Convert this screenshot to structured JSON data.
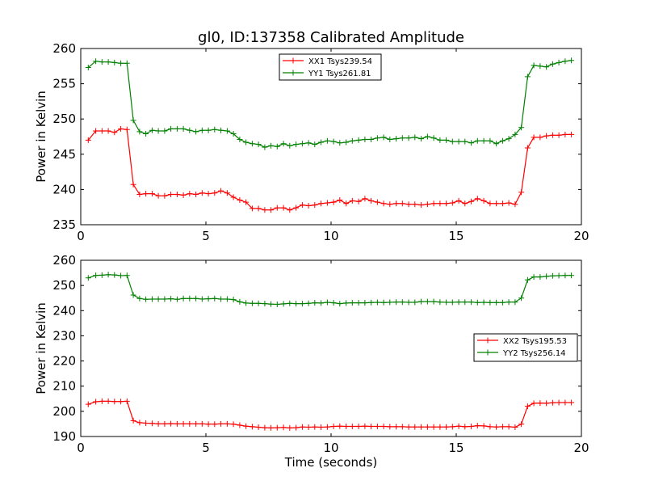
{
  "chart_data": [
    {
      "type": "line",
      "title": "gl0, ID:137358 Calibrated Amplitude",
      "xlabel": "",
      "ylabel": "Power in Kelvin",
      "xlim": [
        0,
        20
      ],
      "ylim": [
        235,
        260
      ],
      "xticks": [
        0,
        5,
        10,
        15,
        20
      ],
      "yticks": [
        235,
        240,
        245,
        250,
        255,
        260
      ],
      "legend_position": "top-center",
      "grid": false,
      "x": [
        0.3,
        0.6,
        0.85,
        1.1,
        1.35,
        1.6,
        1.85,
        2.1,
        2.35,
        2.6,
        2.85,
        3.1,
        3.35,
        3.6,
        3.85,
        4.1,
        4.35,
        4.6,
        4.85,
        5.1,
        5.35,
        5.6,
        5.85,
        6.1,
        6.35,
        6.6,
        6.85,
        7.1,
        7.35,
        7.6,
        7.85,
        8.1,
        8.35,
        8.6,
        8.85,
        9.1,
        9.35,
        9.6,
        9.85,
        10.1,
        10.35,
        10.6,
        10.85,
        11.1,
        11.35,
        11.6,
        11.85,
        12.1,
        12.35,
        12.6,
        12.85,
        13.1,
        13.35,
        13.6,
        13.85,
        14.1,
        14.35,
        14.6,
        14.85,
        15.1,
        15.35,
        15.6,
        15.85,
        16.1,
        16.35,
        16.6,
        16.85,
        17.1,
        17.35,
        17.6,
        17.85,
        18.1,
        18.35,
        18.6,
        18.85,
        19.1,
        19.35,
        19.6
      ],
      "series": [
        {
          "name": "XX1 Tsys239.54",
          "color": "#ff0000",
          "values": [
            247.0,
            248.3,
            248.3,
            248.3,
            248.1,
            248.6,
            248.5,
            240.7,
            239.3,
            239.4,
            239.4,
            239.1,
            239.1,
            239.3,
            239.3,
            239.2,
            239.4,
            239.3,
            239.5,
            239.4,
            239.5,
            239.8,
            239.5,
            238.9,
            238.5,
            238.2,
            237.3,
            237.3,
            237.1,
            237.1,
            237.4,
            237.4,
            237.1,
            237.4,
            237.8,
            237.7,
            237.8,
            238.0,
            238.1,
            238.2,
            238.5,
            238.0,
            238.4,
            238.3,
            238.7,
            238.4,
            238.2,
            238.0,
            237.9,
            238.0,
            238.0,
            237.9,
            237.9,
            237.8,
            237.9,
            238.0,
            238.0,
            238.0,
            238.1,
            238.4,
            238.0,
            238.3,
            238.7,
            238.4,
            238.0,
            238.0,
            238.0,
            238.1,
            237.9,
            239.6,
            245.9,
            247.4,
            247.4,
            247.6,
            247.7,
            247.7,
            247.8,
            247.8
          ]
        },
        {
          "name": "YY1 Tsys261.81",
          "color": "#008000",
          "values": [
            257.3,
            258.2,
            258.1,
            258.1,
            258.0,
            257.9,
            257.9,
            249.8,
            248.2,
            247.9,
            248.4,
            248.3,
            248.3,
            248.6,
            248.6,
            248.6,
            248.4,
            248.2,
            248.4,
            248.4,
            248.5,
            248.4,
            248.3,
            247.9,
            247.1,
            246.7,
            246.5,
            246.4,
            246.0,
            246.2,
            246.1,
            246.5,
            246.2,
            246.4,
            246.5,
            246.6,
            246.4,
            246.7,
            246.9,
            246.8,
            246.6,
            246.7,
            246.9,
            247.0,
            247.1,
            247.1,
            247.3,
            247.4,
            247.1,
            247.2,
            247.3,
            247.3,
            247.4,
            247.2,
            247.5,
            247.3,
            247.0,
            247.0,
            246.8,
            246.8,
            246.8,
            246.6,
            246.9,
            246.9,
            246.9,
            246.5,
            246.9,
            247.2,
            247.8,
            248.8,
            256.0,
            257.6,
            257.5,
            257.4,
            257.8,
            258.0,
            258.2,
            258.3
          ]
        }
      ]
    },
    {
      "type": "line",
      "title": "",
      "xlabel": "Time (seconds)",
      "ylabel": "Power in Kelvin",
      "xlim": [
        0,
        20
      ],
      "ylim": [
        190,
        260
      ],
      "xticks": [
        0,
        5,
        10,
        15,
        20
      ],
      "yticks": [
        190,
        200,
        210,
        220,
        230,
        240,
        250,
        260
      ],
      "legend_position": "center-right",
      "grid": false,
      "x": [
        0.3,
        0.6,
        0.85,
        1.1,
        1.35,
        1.6,
        1.85,
        2.1,
        2.35,
        2.6,
        2.85,
        3.1,
        3.35,
        3.6,
        3.85,
        4.1,
        4.35,
        4.6,
        4.85,
        5.1,
        5.35,
        5.6,
        5.85,
        6.1,
        6.35,
        6.6,
        6.85,
        7.1,
        7.35,
        7.6,
        7.85,
        8.1,
        8.35,
        8.6,
        8.85,
        9.1,
        9.35,
        9.6,
        9.85,
        10.1,
        10.35,
        10.6,
        10.85,
        11.1,
        11.35,
        11.6,
        11.85,
        12.1,
        12.35,
        12.6,
        12.85,
        13.1,
        13.35,
        13.6,
        13.85,
        14.1,
        14.35,
        14.6,
        14.85,
        15.1,
        15.35,
        15.6,
        15.85,
        16.1,
        16.35,
        16.6,
        16.85,
        17.1,
        17.35,
        17.6,
        17.85,
        18.1,
        18.35,
        18.6,
        18.85,
        19.1,
        19.35,
        19.6
      ],
      "series": [
        {
          "name": "XX2 Tsys195.53",
          "color": "#ff0000",
          "values": [
            202.8,
            203.8,
            204.0,
            204.0,
            203.9,
            203.9,
            204.0,
            196.3,
            195.5,
            195.3,
            195.2,
            195.0,
            195.0,
            195.1,
            195.0,
            195.0,
            195.0,
            195.0,
            195.0,
            194.9,
            194.9,
            195.0,
            195.0,
            194.9,
            194.5,
            194.1,
            193.9,
            193.7,
            193.5,
            193.4,
            193.5,
            193.6,
            193.4,
            193.5,
            193.8,
            193.7,
            193.8,
            193.7,
            193.8,
            194.0,
            194.1,
            194.0,
            194.0,
            194.0,
            194.1,
            194.0,
            194.0,
            194.0,
            193.9,
            193.9,
            193.9,
            193.8,
            193.8,
            193.8,
            193.8,
            193.8,
            193.8,
            193.8,
            193.9,
            194.1,
            193.9,
            194.0,
            194.3,
            194.2,
            193.9,
            193.8,
            193.9,
            193.9,
            193.7,
            194.9,
            202.0,
            203.2,
            203.3,
            203.2,
            203.4,
            203.5,
            203.5,
            203.5
          ]
        },
        {
          "name": "YY2 Tsys256.14",
          "color": "#008000",
          "values": [
            253.0,
            254.0,
            254.1,
            254.3,
            254.2,
            253.9,
            254.0,
            246.2,
            244.8,
            244.5,
            244.6,
            244.6,
            244.6,
            244.7,
            244.5,
            244.8,
            244.8,
            244.8,
            244.6,
            244.7,
            244.8,
            244.6,
            244.6,
            244.4,
            243.5,
            243.0,
            242.9,
            242.9,
            242.8,
            242.6,
            242.5,
            242.7,
            242.9,
            242.8,
            242.8,
            242.9,
            243.1,
            243.0,
            243.3,
            243.1,
            242.8,
            243.0,
            243.1,
            243.1,
            243.1,
            243.2,
            243.3,
            243.2,
            243.3,
            243.4,
            243.4,
            243.3,
            243.3,
            243.6,
            243.6,
            243.6,
            243.4,
            243.3,
            243.3,
            243.4,
            243.4,
            243.4,
            243.2,
            243.3,
            243.2,
            243.2,
            243.2,
            243.4,
            243.4,
            245.0,
            252.2,
            253.4,
            253.4,
            253.6,
            253.8,
            253.9,
            254.0,
            254.0
          ]
        }
      ]
    }
  ]
}
